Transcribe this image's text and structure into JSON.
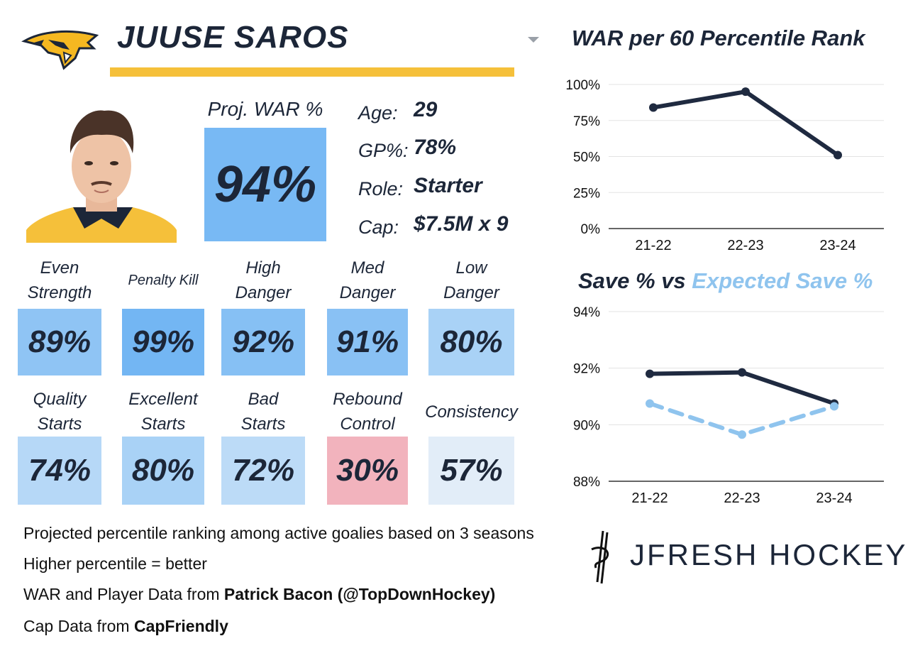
{
  "player": {
    "name": "JUUSE SAROS",
    "proj_war_label": "Proj. WAR %",
    "proj_war_value": "94%"
  },
  "info": [
    {
      "label": "Age:",
      "value": "29"
    },
    {
      "label": "GP%:",
      "value": "78%"
    },
    {
      "label": "Role:",
      "value": "Starter"
    },
    {
      "label": "Cap:",
      "value": "$7.5M x 9"
    }
  ],
  "stats": [
    {
      "label_lines": [
        "Even",
        "Strength"
      ],
      "value": "89%",
      "color": "#8fc4f4"
    },
    {
      "label_lines": [
        "Penalty Kill"
      ],
      "value": "99%",
      "color": "#73b6f3"
    },
    {
      "label_lines": [
        "High",
        "Danger"
      ],
      "value": "92%",
      "color": "#86c0f4"
    },
    {
      "label_lines": [
        "Med",
        "Danger"
      ],
      "value": "91%",
      "color": "#89c1f4"
    },
    {
      "label_lines": [
        "Low",
        "Danger"
      ],
      "value": "80%",
      "color": "#a9d2f6"
    },
    {
      "label_lines": [
        "Quality",
        "Starts"
      ],
      "value": "74%",
      "color": "#b6d8f7"
    },
    {
      "label_lines": [
        "Excellent",
        "Starts"
      ],
      "value": "80%",
      "color": "#a9d2f6"
    },
    {
      "label_lines": [
        "Bad",
        "Starts"
      ],
      "value": "72%",
      "color": "#bcdbf7"
    },
    {
      "label_lines": [
        "Rebound",
        "Control"
      ],
      "value": "30%",
      "color": "#f2b3bd"
    },
    {
      "label_lines": [
        "Consistency"
      ],
      "value": "57%",
      "color": "#e2edf8"
    }
  ],
  "colors": {
    "proj_box": "#78b9f4",
    "brand_gold": "#f5c03a",
    "dark_line": "#1f2a40",
    "light_line": "#8fc4ee"
  },
  "chart_data": [
    {
      "type": "line",
      "title": "WAR per 60 Percentile Rank",
      "categories": [
        "21-22",
        "22-23",
        "23-24"
      ],
      "series": [
        {
          "values": [
            84,
            95,
            51
          ]
        }
      ],
      "ylim": [
        0,
        100
      ],
      "yticks": [
        0,
        25,
        50,
        75,
        100
      ],
      "ytick_labels": [
        "0%",
        "25%",
        "50%",
        "75%",
        "100%"
      ],
      "grid": true
    },
    {
      "type": "line",
      "title_parts": [
        "Save % vs ",
        "Expected Save %"
      ],
      "categories": [
        "21-22",
        "22-23",
        "23-24"
      ],
      "series": [
        {
          "values": [
            91.8,
            91.85,
            90.75
          ],
          "style": "solid"
        },
        {
          "values": [
            90.75,
            89.65,
            90.65
          ],
          "style": "dashed"
        }
      ],
      "ylim": [
        88,
        94
      ],
      "yticks": [
        88,
        90,
        92,
        94
      ],
      "ytick_labels": [
        "88%",
        "90%",
        "92%",
        "94%"
      ],
      "grid": true
    }
  ],
  "footer": {
    "line1": "Projected percentile ranking among active goalies based on 3 seasons",
    "line2": "Higher percentile = better",
    "line3_prefix": "WAR and Player Data from ",
    "line3_bold": "Patrick Bacon (@TopDownHockey)",
    "line4_prefix": "Cap Data from ",
    "line4_bold": "CapFriendly"
  },
  "brand": {
    "name": "JFRESH HOCKEY"
  }
}
